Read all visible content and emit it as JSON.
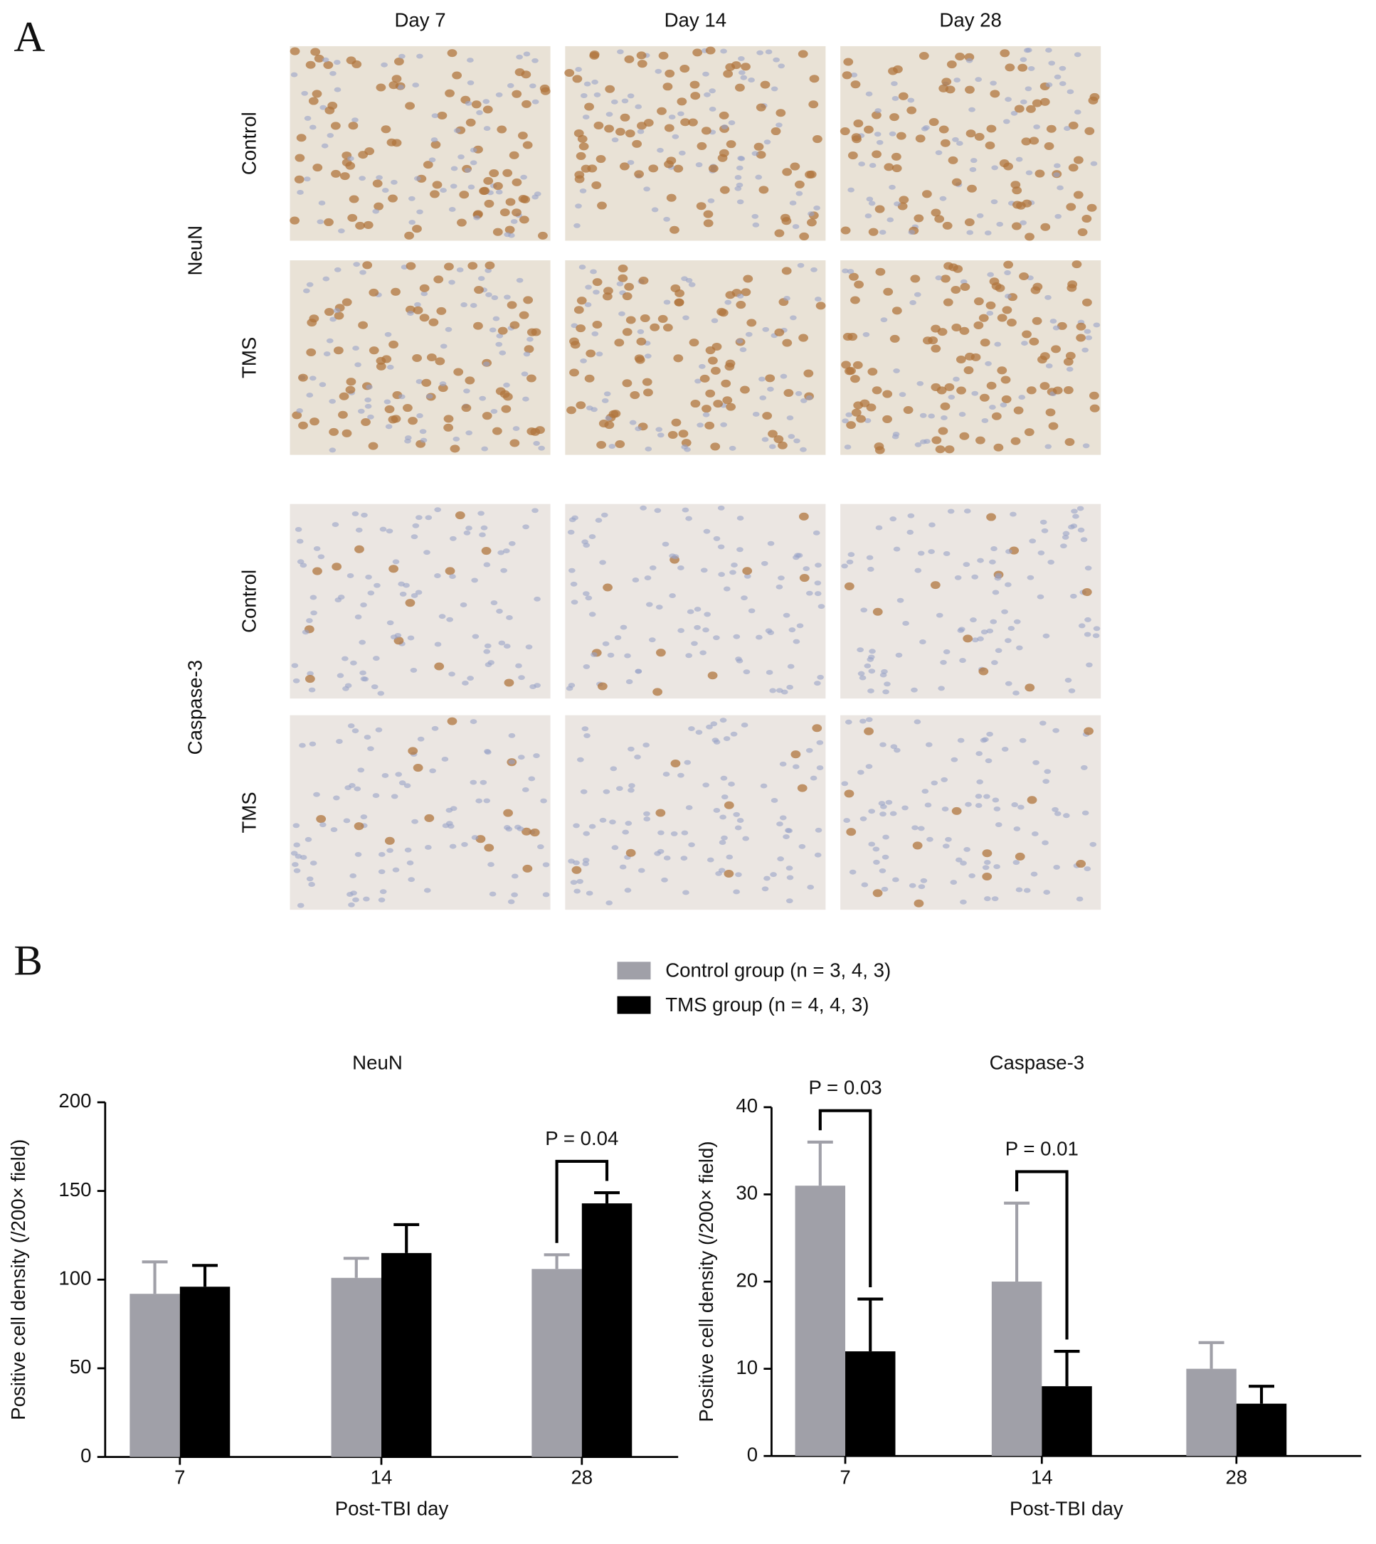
{
  "panel_a": {
    "label": "A",
    "columns": [
      "Day 7",
      "Day 14",
      "Day 28"
    ],
    "markers": [
      {
        "name": "NeuN",
        "rows": [
          "Control",
          "TMS"
        ]
      },
      {
        "name": "Caspase-3",
        "rows": [
          "Control",
          "TMS"
        ]
      }
    ]
  },
  "panel_b": {
    "label": "B"
  },
  "chart_data": [
    {
      "type": "bar",
      "title": "NeuN",
      "x_label": "Post-TBI day",
      "y_label": "Positive cell density (/200× field)",
      "categories": [
        "7",
        "14",
        "28"
      ],
      "series": [
        {
          "name": "Control group (n = 3, 4, 3)",
          "color": "#a0a0a8",
          "values": [
            92,
            101,
            106
          ],
          "errors": [
            18,
            11,
            8
          ]
        },
        {
          "name": "TMS group (n = 4, 4, 3)",
          "color": "#000000",
          "values": [
            96,
            115,
            143
          ],
          "errors": [
            12,
            16,
            6
          ]
        }
      ],
      "ylim": [
        0,
        200
      ],
      "yticks": [
        0,
        50,
        100,
        150,
        200
      ],
      "annotations": [
        {
          "text": "P = 0.04",
          "category": "28"
        }
      ]
    },
    {
      "type": "bar",
      "title": "Caspase-3",
      "x_label": "Post-TBI day",
      "y_label": "Positive cell density (/200× field)",
      "categories": [
        "7",
        "14",
        "28"
      ],
      "series": [
        {
          "color": "#a0a0a8",
          "values": [
            31,
            20,
            10
          ],
          "errors": [
            5,
            9,
            3
          ]
        },
        {
          "color": "#000000",
          "values": [
            12,
            8,
            6
          ],
          "errors": [
            6,
            4,
            2
          ]
        }
      ],
      "ylim": [
        0,
        40
      ],
      "yticks": [
        0,
        10,
        20,
        30,
        40
      ],
      "annotations": [
        {
          "text": "P = 0.03",
          "category": "7"
        },
        {
          "text": "P = 0.01",
          "category": "14"
        }
      ]
    }
  ]
}
